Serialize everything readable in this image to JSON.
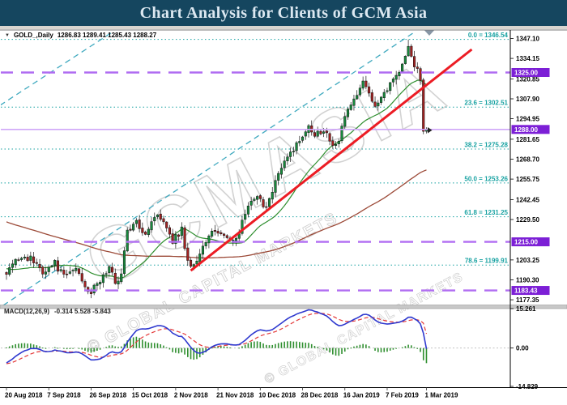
{
  "header": {
    "title": "Chart Analysis for Clients of GCM Asia"
  },
  "legend": {
    "dropdown_icon": "▼",
    "symbol_label": "GOLD_,Daily",
    "ohlc_text": "1286.83 1289.41 1285.43 1288.27"
  },
  "macd_label": {
    "name": "MACD(12,26,9)",
    "values": "-0.314 5.528 -5.843"
  },
  "watermark": {
    "big": "GCMASIA",
    "small": "© GLOBAL CAPITAL MARKETS"
  },
  "chart_data": {
    "type": "candlestick",
    "symbol": "GOLD_",
    "timeframe": "Daily",
    "current_ohlc": {
      "open": 1286.83,
      "high": 1289.41,
      "low": 1285.43,
      "close": 1288.27
    },
    "price_axis": {
      "max": 1347.1,
      "min": 1177.35,
      "ticks": [
        1347.1,
        1334.15,
        1320.85,
        1307.9,
        1294.95,
        1281.65,
        1268.7,
        1255.75,
        1242.45,
        1229.5,
        1203.25,
        1190.3,
        1177.35
      ]
    },
    "axis_badges": [
      1325.0,
      1288.0,
      1215.0,
      1183.43
    ],
    "horizontal_levels": {
      "purple_dashed": [
        1325.0,
        1215.0,
        1183.43
      ],
      "current_price_line": 1288.0
    },
    "fibonacci": [
      {
        "level": "0.0",
        "price": 1346.54
      },
      {
        "level": "23.6",
        "price": 1302.51
      },
      {
        "level": "38.2",
        "price": 1275.28
      },
      {
        "level": "50.0",
        "price": 1253.26
      },
      {
        "level": "61.8",
        "price": 1231.25
      },
      {
        "level": "78.6",
        "price": 1199.91
      }
    ],
    "date_axis": [
      {
        "label": "20 Aug 2018",
        "day": 0
      },
      {
        "label": "7 Sep 2018",
        "day": 14
      },
      {
        "label": "26 Sep 2018",
        "day": 28
      },
      {
        "label": "15 Oct 2018",
        "day": 42
      },
      {
        "label": "2 Nov 2018",
        "day": 56
      },
      {
        "label": "21 Nov 2018",
        "day": 70
      },
      {
        "label": "10 Dec 2018",
        "day": 84
      },
      {
        "label": "28 Dec 2018",
        "day": 98
      },
      {
        "label": "16 Jan 2019",
        "day": 112
      },
      {
        "label": "7 Feb 2019",
        "day": 126
      },
      {
        "label": "1 Mar 2019",
        "day": 139
      }
    ],
    "days_total": 140,
    "close_anchors": [
      [
        0,
        1194
      ],
      [
        2,
        1200
      ],
      [
        5,
        1206
      ],
      [
        8,
        1204
      ],
      [
        12,
        1196
      ],
      [
        16,
        1201
      ],
      [
        19,
        1192
      ],
      [
        23,
        1198
      ],
      [
        26,
        1187
      ],
      [
        28,
        1182
      ],
      [
        31,
        1190
      ],
      [
        34,
        1198
      ],
      [
        36,
        1189
      ],
      [
        38,
        1194
      ],
      [
        40,
        1222
      ],
      [
        43,
        1227
      ],
      [
        46,
        1221
      ],
      [
        49,
        1232
      ],
      [
        52,
        1230
      ],
      [
        55,
        1216
      ],
      [
        58,
        1223
      ],
      [
        60,
        1202
      ],
      [
        62,
        1199
      ],
      [
        65,
        1212
      ],
      [
        68,
        1221
      ],
      [
        71,
        1221
      ],
      [
        74,
        1214
      ],
      [
        77,
        1222
      ],
      [
        80,
        1238
      ],
      [
        83,
        1243
      ],
      [
        86,
        1238
      ],
      [
        89,
        1255
      ],
      [
        92,
        1266
      ],
      [
        95,
        1276
      ],
      [
        97,
        1280
      ],
      [
        100,
        1292
      ],
      [
        102,
        1285
      ],
      [
        105,
        1288
      ],
      [
        108,
        1279
      ],
      [
        110,
        1282
      ],
      [
        113,
        1302
      ],
      [
        115,
        1307
      ],
      [
        118,
        1318
      ],
      [
        120,
        1312
      ],
      [
        122,
        1305
      ],
      [
        125,
        1312
      ],
      [
        128,
        1320
      ],
      [
        130,
        1327
      ],
      [
        132,
        1336
      ],
      [
        133,
        1341
      ],
      [
        134,
        1337
      ],
      [
        135,
        1328
      ],
      [
        136,
        1326
      ],
      [
        137,
        1320
      ],
      [
        138,
        1286.8
      ],
      [
        139,
        1288.27
      ]
    ],
    "last_candles": {
      "138": [
        1320.2,
        1321.5,
        1284.9,
        1286.8
      ],
      "139": [
        1286.83,
        1289.41,
        1285.43,
        1288.27
      ]
    },
    "forced_high": {
      "day": 133,
      "price": 1346.54
    },
    "prehistory": {
      "days": 110,
      "start": 1274,
      "end": 1191
    },
    "trendline": {
      "day1": 61,
      "price1": 1196.3,
      "day2": 154,
      "price2": 1340.0
    },
    "channel": [
      {
        "day1": -1.1,
        "price1": 1173.7,
        "day2": 135.1,
        "price2": 1351.3
      },
      {
        "day1": -2.1,
        "price1": 1303.7,
        "day2": 35.1,
        "price2": 1351.3
      }
    ],
    "moving_averages": [
      {
        "period": 20,
        "color": "#2f8f2f"
      },
      {
        "period": 100,
        "color": "#9c4a38"
      }
    ],
    "macd": {
      "fast": 12,
      "slow": 26,
      "signal_period": 9,
      "scale_max": 15.261,
      "scale_min": -14.829,
      "axis_labels": [
        "15.261",
        "0.00",
        "-14.829"
      ],
      "current": {
        "macd": -0.314,
        "signal": 5.528,
        "histogram": -5.843
      }
    },
    "colors": {
      "up": "#178a3c",
      "down": "#a32222",
      "wick": "#1a1a1a",
      "fib": "#18a2a2",
      "channel": "#3fa9bf",
      "purple": "#b06df2",
      "badge": "#7c1fd6",
      "price_line": "#cfa6f8",
      "trend": "#ec1c24",
      "macd_line": "#2f39cf",
      "signal_line": "#e43838",
      "histogram": "#2f8f2f",
      "header_bg": "#15465f",
      "watermark": "#c4c4c4"
    }
  }
}
